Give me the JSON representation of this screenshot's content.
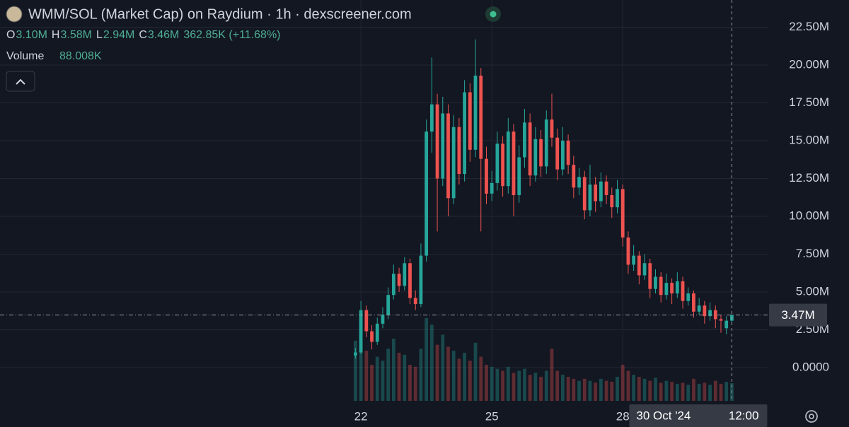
{
  "chart_data": {
    "type": "candlestick",
    "title": "WMM/SOL (Market Cap) on Raydium · 1h · dexscreener.com",
    "legend_items": [
      {
        "key": "O",
        "value": "3.10M"
      },
      {
        "key": "H",
        "value": "3.58M"
      },
      {
        "key": "L",
        "value": "2.94M"
      },
      {
        "key": "C",
        "value": "3.46M"
      }
    ],
    "change": "362.85K (+11.68%)",
    "volume_title": "Volume",
    "volume_value": "88.008K",
    "up_color": "#26a69a",
    "down_color": "#ef5350",
    "x": [
      21.875,
      22,
      22.125,
      22.25,
      22.375,
      22.5,
      22.625,
      22.75,
      22.875,
      23,
      23.125,
      23.25,
      23.375,
      23.5,
      23.625,
      23.75,
      23.875,
      24,
      24.125,
      24.25,
      24.375,
      24.5,
      24.625,
      24.75,
      24.875,
      25,
      25.125,
      25.25,
      25.375,
      25.5,
      25.625,
      25.75,
      25.875,
      26,
      26.125,
      26.25,
      26.375,
      26.5,
      26.625,
      26.75,
      26.875,
      27,
      27.125,
      27.25,
      27.375,
      27.5,
      27.625,
      27.75,
      27.875,
      28,
      28.125,
      28.25,
      28.375,
      28.5,
      28.625,
      28.75,
      28.875,
      29,
      29.125,
      29.25,
      29.375,
      29.5,
      29.625,
      29.75,
      29.875,
      30,
      30.125,
      30.25,
      30.375,
      30.5
    ],
    "open": [
      0.8,
      1.0,
      3.8,
      2.4,
      1.7,
      2.9,
      3.5,
      4.8,
      6.2,
      5.4,
      6.9,
      4.6,
      4.2,
      7.4,
      15.6,
      17.4,
      12.5,
      16.8,
      11.2,
      15.9,
      12.8,
      18.2,
      14.4,
      19.3,
      13.8,
      11.5,
      12.2,
      14.8,
      12.0,
      15.6,
      11.4,
      13.9,
      16.2,
      12.7,
      15.1,
      13.3,
      16.4,
      15.2,
      13.1,
      15.0,
      13.4,
      11.9,
      12.6,
      10.4,
      12.1,
      11.0,
      12.3,
      11.4,
      10.6,
      11.8,
      8.6,
      6.8,
      7.4,
      6.1,
      6.9,
      5.2,
      6.0,
      4.8,
      5.6,
      4.9,
      5.7,
      4.4,
      4.9,
      3.7,
      4.1,
      3.4,
      3.8,
      3.2,
      2.6,
      3.1
    ],
    "high": [
      1.3,
      4.4,
      4.1,
      2.8,
      3.3,
      4.0,
      5.3,
      6.8,
      6.6,
      7.3,
      7.2,
      5.1,
      8.2,
      16.4,
      20.5,
      18.1,
      17.9,
      17.4,
      16.7,
      16.5,
      19.0,
      18.8,
      21.7,
      19.8,
      14.6,
      13.0,
      15.6,
      15.3,
      16.5,
      16.1,
      14.7,
      17.1,
      16.8,
      15.9,
      15.7,
      17.0,
      18.1,
      15.8,
      15.9,
      15.4,
      14.0,
      13.2,
      13.0,
      13.4,
      12.6,
      12.9,
      12.7,
      11.9,
      12.4,
      12.1,
      9.0,
      8.1,
      7.7,
      7.5,
      7.2,
      6.5,
      6.3,
      6.2,
      5.9,
      6.3,
      6.0,
      5.3,
      5.1,
      4.6,
      4.4,
      4.3,
      4.1,
      3.5,
      3.4,
      3.58
    ],
    "low": [
      0.6,
      0.9,
      2.0,
      1.2,
      1.5,
      2.6,
      3.2,
      4.5,
      5.0,
      5.1,
      4.2,
      3.8,
      4.0,
      7.0,
      14.2,
      9.0,
      12.0,
      10.0,
      10.8,
      12.1,
      12.3,
      13.6,
      13.9,
      9.0,
      10.8,
      11.0,
      11.7,
      11.3,
      11.5,
      10.0,
      10.9,
      13.2,
      12.0,
      12.3,
      12.6,
      12.8,
      14.6,
      12.4,
      12.7,
      12.8,
      11.2,
      11.4,
      9.8,
      10.0,
      10.3,
      10.6,
      10.8,
      9.9,
      10.2,
      8.0,
      6.2,
      6.4,
      5.5,
      5.8,
      4.6,
      4.9,
      4.3,
      4.5,
      4.2,
      4.6,
      3.9,
      4.1,
      3.3,
      3.5,
      2.9,
      3.1,
      2.6,
      2.3,
      2.2,
      2.94
    ],
    "close": [
      1.0,
      3.8,
      2.4,
      1.7,
      2.9,
      3.5,
      4.8,
      6.2,
      5.4,
      6.9,
      4.6,
      4.2,
      7.4,
      15.6,
      17.4,
      12.5,
      16.8,
      11.2,
      15.9,
      12.8,
      18.2,
      14.4,
      19.3,
      13.8,
      11.5,
      12.2,
      14.8,
      12.0,
      15.6,
      11.4,
      13.9,
      16.2,
      12.7,
      15.1,
      13.3,
      16.4,
      15.2,
      13.1,
      15.0,
      13.4,
      11.9,
      12.6,
      10.4,
      12.1,
      11.0,
      12.3,
      11.4,
      10.6,
      11.8,
      8.6,
      6.8,
      7.4,
      6.1,
      6.9,
      5.2,
      6.0,
      4.8,
      5.6,
      4.9,
      5.7,
      4.4,
      4.9,
      3.7,
      4.1,
      3.4,
      3.8,
      3.2,
      3.1,
      3.1,
      3.46
    ],
    "volume": [
      300,
      420,
      250,
      180,
      220,
      200,
      260,
      310,
      240,
      230,
      180,
      170,
      260,
      413,
      380,
      280,
      330,
      270,
      250,
      210,
      240,
      200,
      290,
      220,
      180,
      170,
      160,
      150,
      170,
      140,
      150,
      160,
      130,
      140,
      120,
      150,
      260,
      150,
      130,
      120,
      110,
      100,
      110,
      100,
      90,
      110,
      100,
      95,
      120,
      180,
      150,
      130,
      120,
      110,
      100,
      115,
      90,
      100,
      95,
      85,
      90,
      80,
      110,
      85,
      90,
      80,
      100,
      85,
      95,
      88.008
    ],
    "xlim": [
      13.73,
      31.32
    ],
    "xticks": [
      22,
      25,
      28
    ],
    "ylim": [
      -2.2,
      24.3
    ],
    "yticks": [
      {
        "value": 0,
        "label": "0.0000"
      },
      {
        "value": 2.5,
        "label": "2.50M"
      },
      {
        "value": 5,
        "label": "5.00M"
      },
      {
        "value": 7.5,
        "label": "7.50M"
      },
      {
        "value": 10,
        "label": "10.00M"
      },
      {
        "value": 12.5,
        "label": "12.50M"
      },
      {
        "value": 15,
        "label": "15.00M"
      },
      {
        "value": 17.5,
        "label": "17.50M"
      },
      {
        "value": 20,
        "label": "20.00M"
      },
      {
        "value": 22.5,
        "label": "22.50M"
      }
    ],
    "y2lim": [
      0,
      2000
    ],
    "grid": true,
    "crosshair_y": {
      "value": 3.47,
      "label": "3.47M"
    },
    "crosshair_x": {
      "value": 30.5,
      "date": "30 Oct '24",
      "time": "12:00"
    }
  }
}
